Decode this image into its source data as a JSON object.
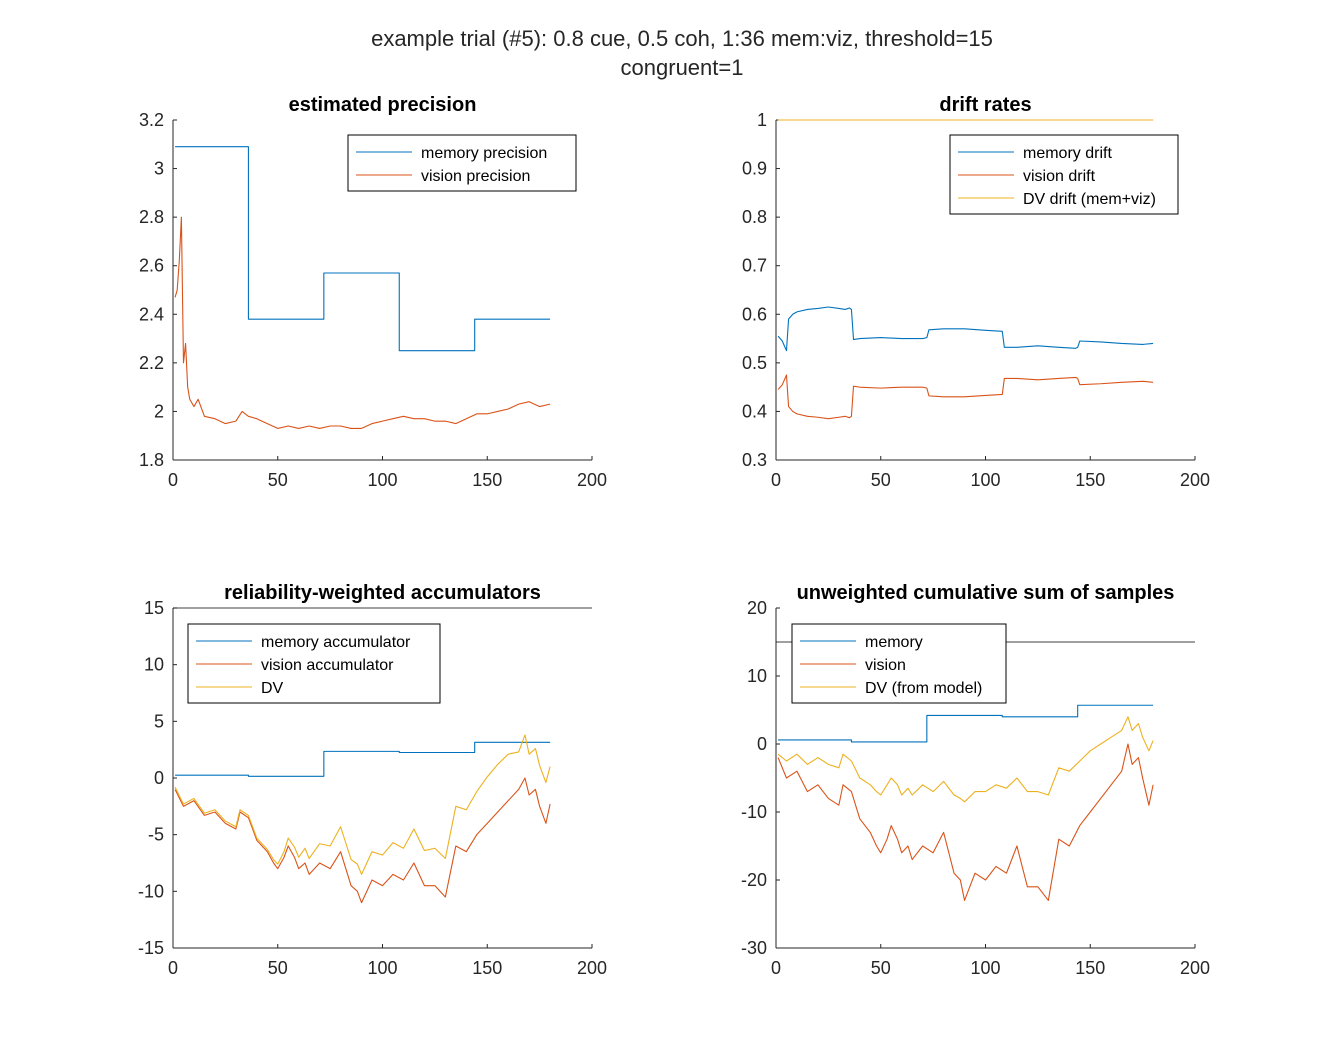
{
  "figure": {
    "suptitle_line1": "example trial (#5): 0.8 cue, 0.5 coh, 1:36 mem:viz, threshold=15",
    "suptitle_line2": "congruent=1"
  },
  "chart_data": [
    {
      "type": "line",
      "title": "estimated precision",
      "xlim": [
        0,
        200
      ],
      "ylim": [
        1.8,
        3.2
      ],
      "xticks": [
        0,
        50,
        100,
        150,
        200
      ],
      "yticks": [
        1.8,
        2,
        2.2,
        2.4,
        2.6,
        2.8,
        3,
        3.2
      ],
      "ytick_labels": [
        "1.8",
        "2",
        "2.2",
        "2.4",
        "2.6",
        "2.8",
        "3",
        "3.2"
      ],
      "xtick_labels": [
        "0",
        "50",
        "100",
        "150",
        "200"
      ],
      "legend": "top-right",
      "series": [
        {
          "name": "memory precision",
          "color": "#0072BD",
          "step": true,
          "x": [
            1,
            36,
            36,
            72,
            72,
            108,
            108,
            144,
            144,
            180
          ],
          "y": [
            3.09,
            3.09,
            2.38,
            2.38,
            2.57,
            2.57,
            2.25,
            2.25,
            2.38,
            2.38
          ]
        },
        {
          "name": "vision precision",
          "color": "#D95319",
          "x": [
            1,
            2,
            3,
            4,
            5,
            6,
            7,
            8,
            10,
            12,
            15,
            20,
            25,
            30,
            33,
            36,
            40,
            45,
            50,
            55,
            60,
            65,
            70,
            75,
            80,
            85,
            90,
            95,
            100,
            105,
            110,
            115,
            120,
            125,
            130,
            135,
            140,
            145,
            150,
            155,
            160,
            165,
            170,
            175,
            180
          ],
          "y": [
            2.47,
            2.5,
            2.62,
            2.8,
            2.2,
            2.28,
            2.1,
            2.05,
            2.02,
            2.05,
            1.98,
            1.97,
            1.95,
            1.96,
            2.0,
            1.98,
            1.97,
            1.95,
            1.93,
            1.94,
            1.93,
            1.94,
            1.93,
            1.94,
            1.94,
            1.93,
            1.93,
            1.95,
            1.96,
            1.97,
            1.98,
            1.97,
            1.97,
            1.96,
            1.96,
            1.95,
            1.97,
            1.99,
            1.99,
            2.0,
            2.01,
            2.03,
            2.04,
            2.02,
            2.03
          ]
        }
      ]
    },
    {
      "type": "line",
      "title": "drift rates",
      "xlim": [
        0,
        200
      ],
      "ylim": [
        0.3,
        1.0
      ],
      "xticks": [
        0,
        50,
        100,
        150,
        200
      ],
      "yticks": [
        0.3,
        0.4,
        0.5,
        0.6,
        0.7,
        0.8,
        0.9,
        1.0
      ],
      "ytick_labels": [
        "0.3",
        "0.4",
        "0.5",
        "0.6",
        "0.7",
        "0.8",
        "0.9",
        "1"
      ],
      "xtick_labels": [
        "0",
        "50",
        "100",
        "150",
        "200"
      ],
      "legend": "top-right",
      "series": [
        {
          "name": "memory drift",
          "color": "#0072BD",
          "x": [
            1,
            3,
            4,
            5,
            6,
            8,
            10,
            15,
            20,
            25,
            30,
            33,
            35,
            36,
            37,
            40,
            50,
            60,
            70,
            72,
            73,
            80,
            90,
            100,
            108,
            109,
            115,
            125,
            135,
            143,
            144,
            145,
            155,
            165,
            175,
            180
          ],
          "y": [
            0.555,
            0.545,
            0.535,
            0.525,
            0.59,
            0.6,
            0.605,
            0.61,
            0.612,
            0.615,
            0.612,
            0.61,
            0.613,
            0.61,
            0.548,
            0.55,
            0.552,
            0.55,
            0.55,
            0.552,
            0.568,
            0.57,
            0.57,
            0.567,
            0.565,
            0.532,
            0.532,
            0.535,
            0.532,
            0.53,
            0.532,
            0.545,
            0.543,
            0.54,
            0.538,
            0.54
          ]
        },
        {
          "name": "vision drift",
          "color": "#D95319",
          "x": [
            1,
            3,
            4,
            5,
            6,
            8,
            10,
            15,
            20,
            25,
            30,
            33,
            35,
            36,
            37,
            40,
            50,
            60,
            70,
            72,
            73,
            80,
            90,
            100,
            108,
            109,
            115,
            125,
            135,
            143,
            144,
            145,
            155,
            165,
            175,
            180
          ],
          "y": [
            0.445,
            0.455,
            0.465,
            0.475,
            0.41,
            0.4,
            0.395,
            0.39,
            0.388,
            0.385,
            0.388,
            0.39,
            0.387,
            0.39,
            0.452,
            0.45,
            0.448,
            0.45,
            0.45,
            0.448,
            0.432,
            0.43,
            0.43,
            0.433,
            0.435,
            0.468,
            0.468,
            0.465,
            0.468,
            0.47,
            0.468,
            0.455,
            0.457,
            0.46,
            0.462,
            0.46
          ]
        },
        {
          "name": "DV drift (mem+viz)",
          "color": "#EDB120",
          "x": [
            1,
            180
          ],
          "y": [
            1.0,
            1.0
          ]
        }
      ]
    },
    {
      "type": "line",
      "title": "reliability-weighted accumulators",
      "xlim": [
        0,
        200
      ],
      "ylim": [
        -15,
        15
      ],
      "xticks": [
        0,
        50,
        100,
        150,
        200
      ],
      "yticks": [
        -15,
        -10,
        -5,
        0,
        5,
        10,
        15
      ],
      "ytick_labels": [
        "-15",
        "-10",
        "-5",
        "0",
        "5",
        "10",
        "15"
      ],
      "xtick_labels": [
        "0",
        "50",
        "100",
        "150",
        "200"
      ],
      "legend": "top-left",
      "threshold": 15,
      "series": [
        {
          "name": "memory accumulator",
          "color": "#0072BD",
          "step": true,
          "x": [
            1,
            36,
            36,
            72,
            72,
            108,
            108,
            144,
            144,
            180
          ],
          "y": [
            0.25,
            0.25,
            0.15,
            0.15,
            2.35,
            2.35,
            2.25,
            2.25,
            3.15,
            3.15
          ]
        },
        {
          "name": "vision accumulator",
          "color": "#D95319",
          "x": [
            1,
            5,
            10,
            15,
            20,
            25,
            30,
            32,
            36,
            40,
            45,
            48,
            50,
            53,
            55,
            58,
            60,
            63,
            65,
            70,
            75,
            80,
            85,
            88,
            90,
            95,
            100,
            105,
            110,
            115,
            120,
            125,
            130,
            135,
            140,
            145,
            150,
            155,
            160,
            165,
            168,
            170,
            173,
            175,
            178,
            180
          ],
          "y": [
            -1,
            -2.5,
            -2,
            -3.3,
            -3,
            -4,
            -4.5,
            -3,
            -3.5,
            -5.5,
            -6.5,
            -7.5,
            -8,
            -7,
            -6,
            -7,
            -8,
            -7.5,
            -8.5,
            -7.5,
            -8,
            -6.5,
            -9.5,
            -10,
            -11,
            -9,
            -9.5,
            -8.5,
            -9,
            -7.5,
            -9.5,
            -9.5,
            -10.5,
            -6,
            -6.5,
            -5,
            -4,
            -3,
            -2,
            -1,
            0,
            -1.5,
            -1,
            -2.5,
            -4,
            -2.3
          ]
        },
        {
          "name": "DV",
          "color": "#EDB120",
          "x": [
            1,
            5,
            10,
            15,
            20,
            25,
            30,
            32,
            36,
            40,
            45,
            48,
            50,
            53,
            55,
            58,
            60,
            63,
            65,
            70,
            75,
            80,
            85,
            88,
            90,
            95,
            100,
            105,
            110,
            115,
            120,
            125,
            130,
            135,
            140,
            145,
            150,
            155,
            160,
            165,
            168,
            170,
            173,
            175,
            178,
            180
          ],
          "y": [
            -0.8,
            -2.3,
            -1.8,
            -3.1,
            -2.8,
            -3.8,
            -4.3,
            -2.8,
            -3.3,
            -5.3,
            -6.3,
            -7.2,
            -7.6,
            -6.5,
            -5.3,
            -6.1,
            -7,
            -6.2,
            -7.1,
            -5.8,
            -6,
            -4.3,
            -7.2,
            -7.6,
            -8.5,
            -6.5,
            -6.8,
            -5.7,
            -6.2,
            -4.5,
            -6.4,
            -6.2,
            -7.1,
            -2.5,
            -2.8,
            -1.2,
            0.1,
            1.2,
            2.1,
            2.3,
            3.8,
            2.1,
            2.6,
            1.1,
            -0.4,
            1.0
          ]
        }
      ]
    },
    {
      "type": "line",
      "title": "unweighted cumulative sum of samples",
      "xlim": [
        0,
        200
      ],
      "ylim": [
        -30,
        20
      ],
      "xticks": [
        0,
        50,
        100,
        150,
        200
      ],
      "yticks": [
        -30,
        -20,
        -10,
        0,
        10,
        20
      ],
      "ytick_labels": [
        "-30",
        "-20",
        "-10",
        "0",
        "10",
        "20"
      ],
      "xtick_labels": [
        "0",
        "50",
        "100",
        "150",
        "200"
      ],
      "legend": "top-left",
      "threshold": 15,
      "series": [
        {
          "name": "memory",
          "color": "#0072BD",
          "step": true,
          "x": [
            1,
            36,
            36,
            72,
            72,
            108,
            108,
            144,
            144,
            180
          ],
          "y": [
            0.6,
            0.6,
            0.3,
            0.3,
            4.2,
            4.2,
            4.0,
            4.0,
            5.7,
            5.7
          ]
        },
        {
          "name": "vision",
          "color": "#D95319",
          "x": [
            1,
            5,
            10,
            15,
            20,
            25,
            30,
            32,
            36,
            40,
            45,
            48,
            50,
            53,
            55,
            58,
            60,
            63,
            65,
            70,
            75,
            80,
            85,
            88,
            90,
            95,
            100,
            105,
            110,
            115,
            120,
            125,
            130,
            135,
            140,
            145,
            150,
            155,
            160,
            165,
            168,
            170,
            173,
            175,
            178,
            180
          ],
          "y": [
            -2,
            -5,
            -4,
            -7,
            -6,
            -8,
            -9,
            -6,
            -7,
            -11,
            -13,
            -15,
            -16,
            -14,
            -12,
            -14,
            -16,
            -15,
            -17,
            -15,
            -16,
            -13,
            -19,
            -20,
            -23,
            -19,
            -20,
            -18,
            -19,
            -15,
            -21,
            -21,
            -23,
            -14,
            -15,
            -12,
            -10,
            -8,
            -6,
            -4,
            0,
            -3,
            -2,
            -5,
            -9,
            -6
          ]
        },
        {
          "name": "DV (from model)",
          "color": "#EDB120",
          "x": [
            1,
            5,
            10,
            15,
            20,
            25,
            30,
            32,
            36,
            40,
            45,
            48,
            50,
            53,
            55,
            58,
            60,
            63,
            65,
            70,
            75,
            80,
            85,
            88,
            90,
            95,
            100,
            105,
            110,
            115,
            120,
            125,
            130,
            135,
            140,
            145,
            150,
            155,
            160,
            165,
            168,
            170,
            173,
            175,
            178,
            180
          ],
          "y": [
            -1.5,
            -2.5,
            -1.5,
            -3,
            -2,
            -3,
            -3.5,
            -1.5,
            -2.5,
            -5,
            -6,
            -7,
            -7.5,
            -6,
            -5,
            -6,
            -7.5,
            -6.5,
            -7.5,
            -6,
            -7,
            -5.5,
            -7.5,
            -8,
            -8.5,
            -7,
            -7,
            -6,
            -6.5,
            -5,
            -7,
            -7,
            -7.5,
            -3.5,
            -4,
            -2.5,
            -1,
            0,
            1,
            2,
            4,
            2,
            3,
            1,
            -1,
            0.5
          ]
        }
      ]
    }
  ]
}
